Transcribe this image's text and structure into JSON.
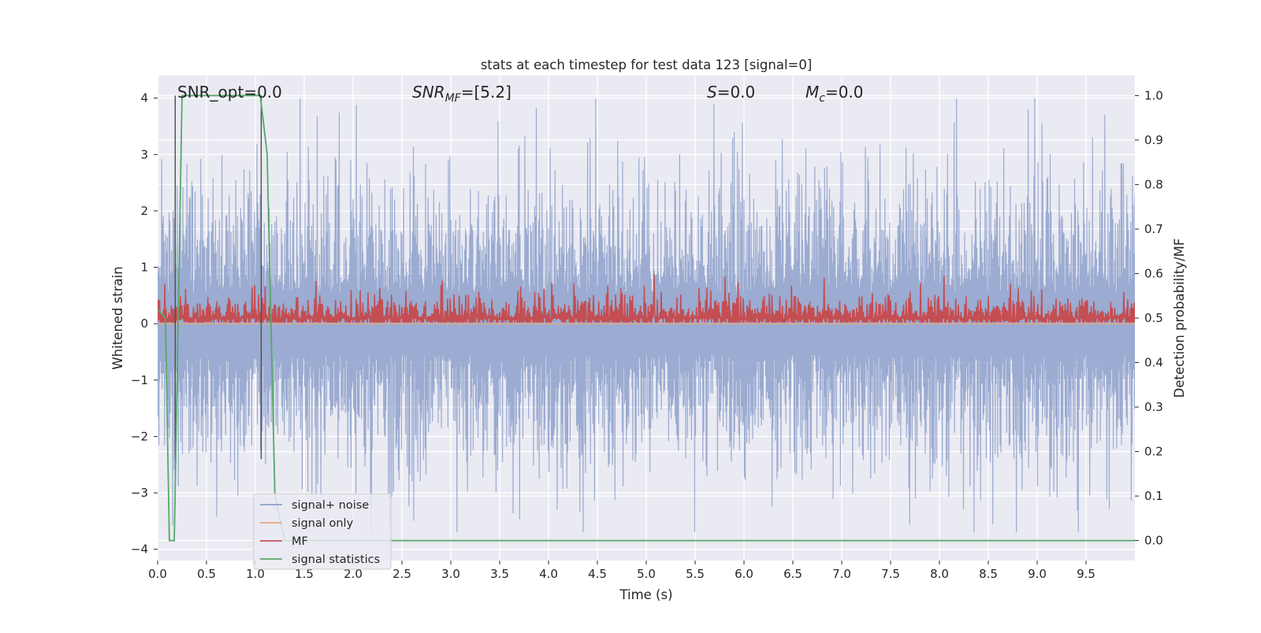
{
  "chart_data": {
    "type": "line",
    "title": "stats at each timestep for test data 123 [signal=0]",
    "xlabel": "Time (s)",
    "ylabel": "Whitened strain",
    "ylabel_right": "Detection probability/MF",
    "xlim": [
      0,
      10
    ],
    "ylim": [
      -4.2,
      4.4
    ],
    "ylim_right": [
      -0.045,
      1.045
    ],
    "x_ticks": [
      "0.0",
      "0.5",
      "1.0",
      "1.5",
      "2.0",
      "2.5",
      "3.0",
      "3.5",
      "4.0",
      "4.5",
      "5.0",
      "5.5",
      "6.0",
      "6.5",
      "7.0",
      "7.5",
      "8.0",
      "8.5",
      "9.0",
      "9.5"
    ],
    "y_ticks": [
      "4",
      "3",
      "2",
      "1",
      "0",
      "−1",
      "−2",
      "−3",
      "−4"
    ],
    "y_ticks_right": [
      "1.0",
      "0.9",
      "0.8",
      "0.7",
      "0.6",
      "0.5",
      "0.4",
      "0.3",
      "0.2",
      "0.1",
      "0.0"
    ],
    "grid": true,
    "annotations": {
      "snr_opt": "SNR_opt=0.0",
      "snr_mf_name": "SNR",
      "snr_mf_sub": "MF",
      "snr_mf_value": "=[5.2]",
      "s_name": "S",
      "s_value": "=0.0",
      "mc_name": "M",
      "mc_sub": "c",
      "mc_value": "=0.0"
    },
    "legend": {
      "placement": "lower-left",
      "entries": [
        "signal+ noise",
        "signal only",
        "MF",
        "signal statistics"
      ]
    },
    "series": [
      {
        "name": "signal+ noise",
        "axis": "left",
        "color": "#8da0cb",
        "description_range": [
          -3.7,
          4.0
        ],
        "rms": 1.0
      },
      {
        "name": "signal only",
        "axis": "left",
        "color": "#e8a87c",
        "constant": 0.0
      },
      {
        "name": "MF",
        "axis": "right",
        "color": "#c44e52",
        "baseline": 0.5,
        "peaks": [
          {
            "x": 5.08,
            "y": 0.6
          },
          {
            "x": 6.82,
            "y": 0.59
          },
          {
            "x": 5.94,
            "y": 0.58
          }
        ]
      },
      {
        "name": "signal statistics",
        "axis": "right",
        "color": "#55a868",
        "x": [
          0.0,
          0.08,
          0.12,
          0.17,
          0.25,
          1.05,
          1.12,
          1.2,
          1.3,
          10.0
        ],
        "values": [
          0.52,
          0.5,
          0.0,
          0.0,
          1.0,
          1.0,
          0.87,
          0.1,
          0.0,
          0.0
        ]
      }
    ],
    "vertical_markers": [
      {
        "x": 0.18,
        "color": "#4c4c4c"
      },
      {
        "x": 1.06,
        "color": "#4c4c4c"
      }
    ]
  }
}
